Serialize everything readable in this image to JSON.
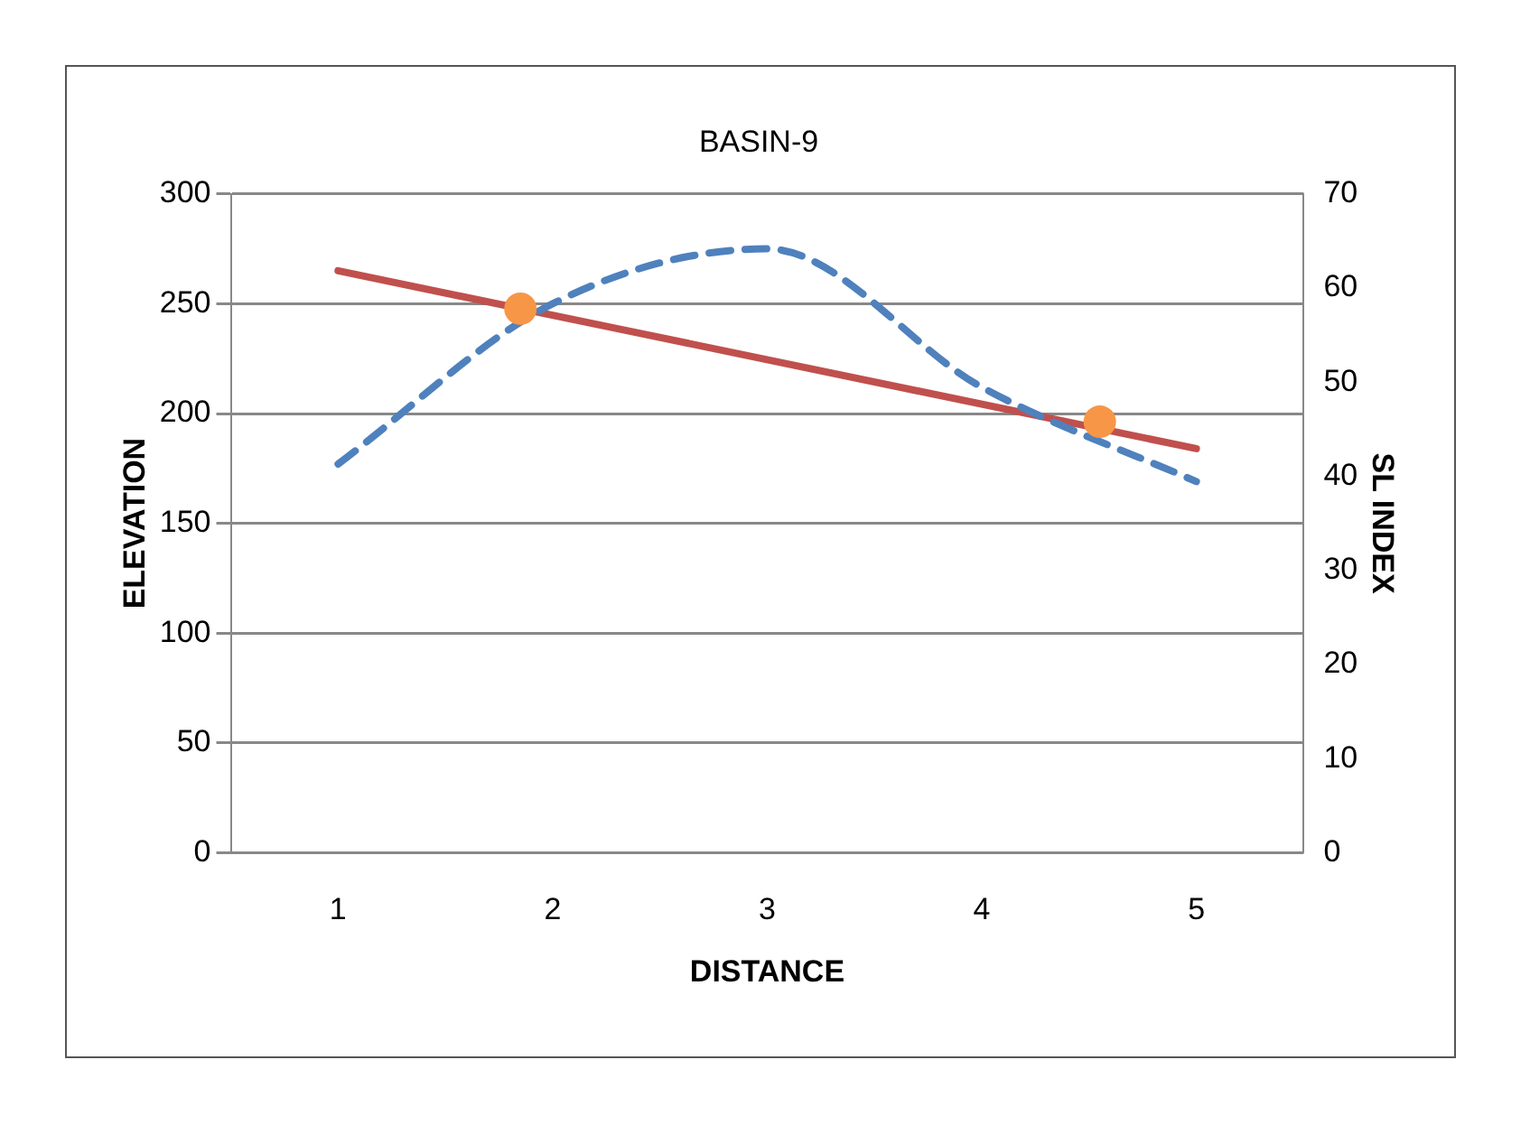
{
  "chart_data": {
    "type": "line",
    "title": "BASIN-9",
    "xlabel": "DISTANCE",
    "ylabel": "ELEVATION",
    "y2label": "SL INDEX",
    "xlim": [
      0.5,
      5.5
    ],
    "xticks": [
      1,
      2,
      3,
      4,
      5
    ],
    "ylim": [
      0,
      300
    ],
    "yticks": [
      0,
      50,
      100,
      150,
      200,
      250,
      300
    ],
    "y2lim": [
      0,
      70
    ],
    "y2ticks": [
      0,
      10,
      20,
      30,
      40,
      50,
      60,
      70
    ],
    "grid": "y",
    "legend": false,
    "series": [
      {
        "type": "line",
        "color": "#4f81bd",
        "line_style": "dashed",
        "marker": "none",
        "x": [
          1,
          2,
          3,
          4,
          5
        ],
        "values": [
          177,
          250,
          275,
          212,
          169
        ]
      },
      {
        "type": "line",
        "color": "#c0504d",
        "line_style": "solid",
        "marker": "none",
        "x": [
          1,
          5
        ],
        "values": [
          265,
          184
        ]
      },
      {
        "type": "scatter",
        "color": "#f79646",
        "marker": "circle",
        "axis": "y2",
        "x": [
          1.85,
          4.55
        ],
        "values": [
          57.8,
          45.8
        ]
      }
    ]
  }
}
